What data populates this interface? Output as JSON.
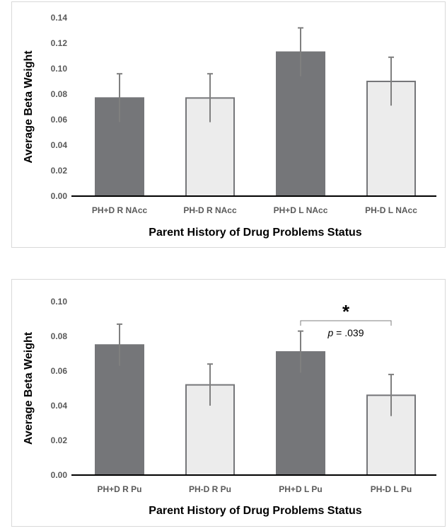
{
  "chart_data": [
    {
      "type": "bar",
      "title": "",
      "xlabel": "Parent History of Drug Problems Status",
      "ylabel": "Average Beta Weight",
      "ylim": [
        0,
        0.14
      ],
      "yticks": [
        "0.00",
        "0.02",
        "0.04",
        "0.06",
        "0.08",
        "0.10",
        "0.12",
        "0.14"
      ],
      "ytick_values": [
        0,
        0.02,
        0.04,
        0.06,
        0.08,
        0.1,
        0.12,
        0.14
      ],
      "categories": [
        "PH+D R NAcc",
        "PH-D R NAcc",
        "PH+D L NAcc",
        "PH-D L NAcc"
      ],
      "values": [
        0.077,
        0.077,
        0.113,
        0.09
      ],
      "error": [
        0.019,
        0.019,
        0.019,
        0.019
      ],
      "bar_colors": [
        "#757679",
        "#ececec",
        "#757679",
        "#ececec"
      ],
      "grid": false
    },
    {
      "type": "bar",
      "title": "",
      "xlabel": "Parent History of Drug Problems Status",
      "ylabel": "Average Beta Weight",
      "ylim": [
        0,
        0.1
      ],
      "yticks": [
        "0.00",
        "0.02",
        "0.04",
        "0.06",
        "0.08",
        "0.10"
      ],
      "ytick_values": [
        0,
        0.02,
        0.04,
        0.06,
        0.08,
        0.1
      ],
      "categories": [
        "PH+D R Pu",
        "PH-D R Pu",
        "PH+D L Pu",
        "PH-D L Pu"
      ],
      "values": [
        0.075,
        0.052,
        0.071,
        0.046
      ],
      "error": [
        0.012,
        0.012,
        0.012,
        0.012
      ],
      "bar_colors": [
        "#757679",
        "#ececec",
        "#757679",
        "#ececec"
      ],
      "grid": false,
      "annotation": {
        "star": "*",
        "p_label": "p",
        "p_value": "= .039",
        "from_category": 2,
        "to_category": 3
      }
    }
  ]
}
